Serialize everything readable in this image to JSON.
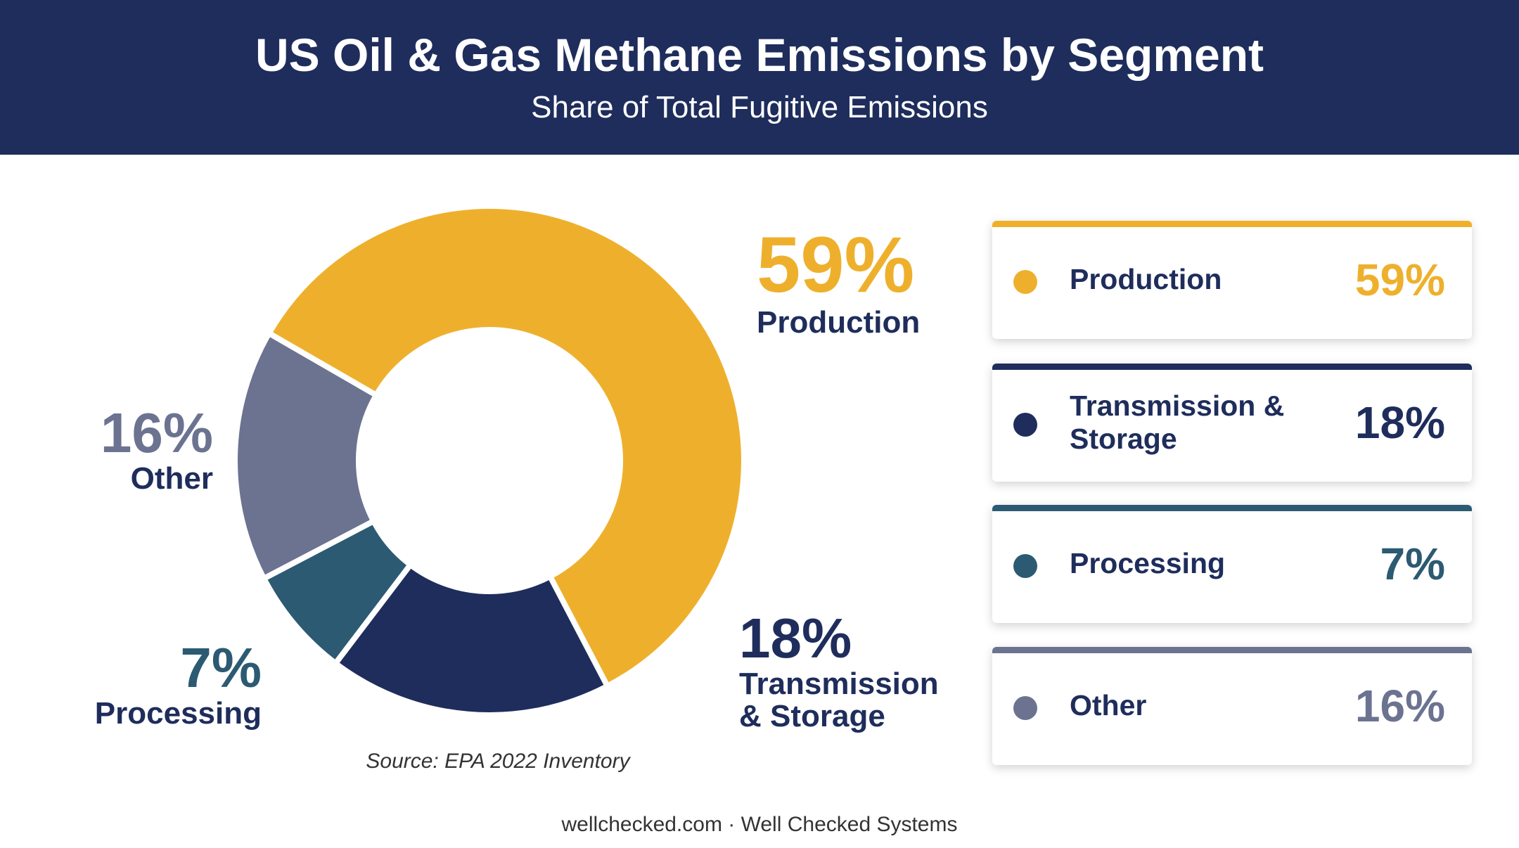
{
  "chart_data": {
    "type": "donut",
    "title": "US Oil & Gas Methane Emissions by Segment",
    "subtitle": "Share of Total Fugitive Emissions",
    "categories": [
      "Production",
      "Transmission & Storage",
      "Processing",
      "Other"
    ],
    "values": [
      59,
      18,
      7,
      16
    ],
    "value_labels": [
      "59%",
      "18%",
      "7%",
      "16%"
    ],
    "colors": [
      "#eeb02c",
      "#1f2d5c",
      "#2c5a72",
      "#6b7391"
    ],
    "source": "Source: EPA 2022 Inventory"
  },
  "footer": "wellchecked.com · Well Checked Systems"
}
